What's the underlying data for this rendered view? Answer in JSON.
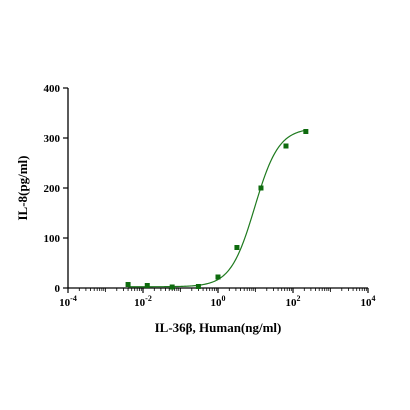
{
  "chart_data": {
    "type": "scatter",
    "xlabel_main": "IL-36β, Human(ng/ml)",
    "ylabel": "IL-8(pg/ml)",
    "x_scale": "log10",
    "xlim": [
      0.0001,
      10000
    ],
    "ylim": [
      0,
      400
    ],
    "x_ticks": [
      {
        "base": "10",
        "exp": "-4",
        "value": 0.0001
      },
      {
        "base": "10",
        "exp": "-2",
        "value": 0.01
      },
      {
        "base": "10",
        "exp": "0",
        "value": 1
      },
      {
        "base": "10",
        "exp": "2",
        "value": 100
      },
      {
        "base": "10",
        "exp": "4",
        "value": 10000
      }
    ],
    "y_ticks": [
      "0",
      "100",
      "200",
      "300",
      "400"
    ],
    "series": [
      {
        "x": [
          0.004,
          0.013,
          0.06,
          0.3,
          1.0,
          3.2,
          14,
          65,
          220
        ],
        "y": [
          7,
          5,
          2,
          3,
          22,
          81,
          200,
          284,
          313
        ],
        "color": "#0e6b0e",
        "marker": "square",
        "fit": "4PL"
      }
    ],
    "grid": false
  }
}
